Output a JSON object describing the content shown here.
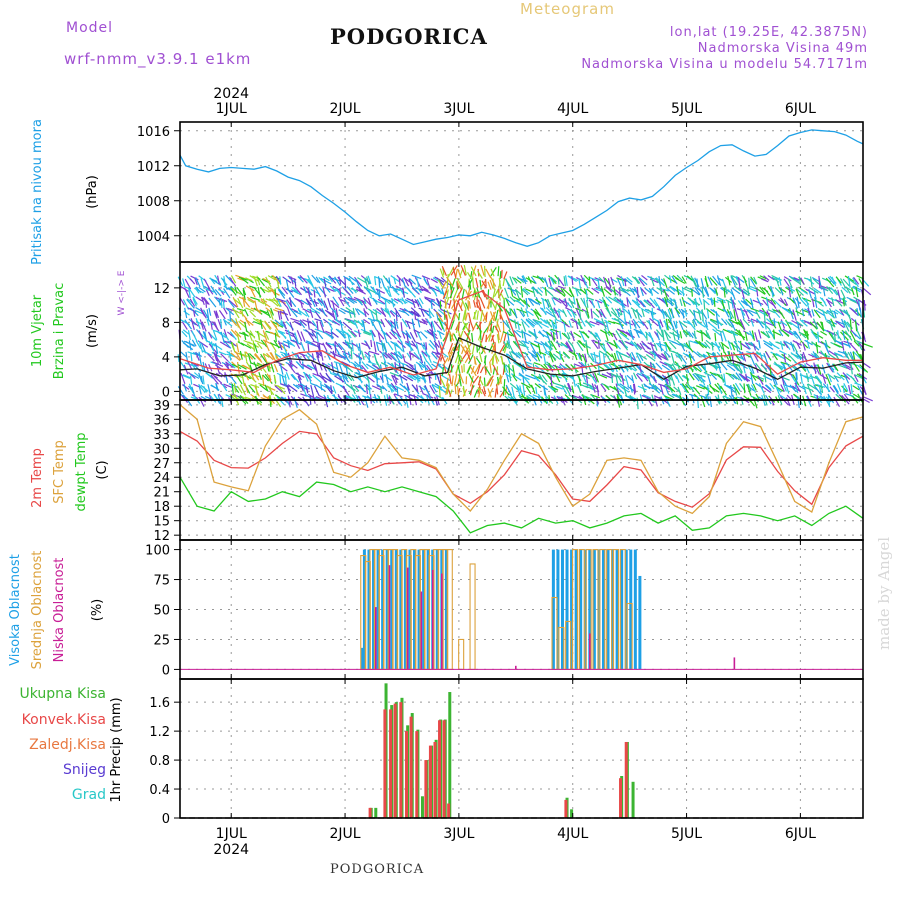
{
  "header": {
    "model_label": "Model",
    "model_name": "wrf-nmm_v3.9.1  e1km",
    "title": "PODGORICA",
    "meteogram": "Meteogram",
    "lonlat": "lon,lat (19.25E, 42.3875N)",
    "elevation": "Nadmorska Visina 49m",
    "model_elevation": "Nadmorska Visina u modelu 54.7171m",
    "footer": "PODGORICA",
    "watermark": "made by Angel"
  },
  "colors": {
    "pressure": "#1ea0e6",
    "temp2m": "#e84848",
    "sfctemp": "#dca23c",
    "dewpt": "#22c81e",
    "high_cloud": "#1ea0e6",
    "mid_cloud": "#dca23c",
    "low_cloud": "#c81e96",
    "total_precip": "#3cb432",
    "conv_precip": "#e84848",
    "snow": "#5a3cd2",
    "graupel": "#28c8c8"
  },
  "chart_data": [
    {
      "type": "line",
      "panel": "pressure",
      "ylabel_lines": [
        "Pritisak na nivou mora",
        "(hPa)"
      ],
      "x_labels": [
        "1JUL",
        "2JUL",
        "3JUL",
        "4JUL",
        "5JUL",
        "6JUL"
      ],
      "x_year": "2024",
      "ylim": [
        1001,
        1017
      ],
      "yticks": [
        1004,
        1008,
        1012,
        1016
      ],
      "xlim_days": [
        0.55,
        6.55
      ],
      "series": [
        {
          "key": "slp",
          "x": [
            0.55,
            0.6,
            0.7,
            0.8,
            0.9,
            1.0,
            1.1,
            1.2,
            1.3,
            1.4,
            1.5,
            1.6,
            1.7,
            1.8,
            1.9,
            2.0,
            2.1,
            2.2,
            2.3,
            2.4,
            2.5,
            2.6,
            2.7,
            2.8,
            2.9,
            3.0,
            3.1,
            3.2,
            3.3,
            3.4,
            3.5,
            3.6,
            3.7,
            3.8,
            3.9,
            4.0,
            4.1,
            4.2,
            4.3,
            4.4,
            4.5,
            4.6,
            4.7,
            4.8,
            4.9,
            5.0,
            5.1,
            5.2,
            5.3,
            5.4,
            5.5,
            5.6,
            5.7,
            5.8,
            5.9,
            6.0,
            6.1,
            6.2,
            6.3,
            6.4,
            6.5,
            6.55
          ],
          "values": [
            1013.2,
            1012.0,
            1011.6,
            1011.3,
            1011.7,
            1011.8,
            1011.7,
            1011.6,
            1011.9,
            1011.4,
            1010.7,
            1010.3,
            1009.6,
            1008.6,
            1007.7,
            1006.7,
            1005.6,
            1004.6,
            1004.0,
            1004.2,
            1003.6,
            1003.0,
            1003.3,
            1003.6,
            1003.8,
            1004.1,
            1004.0,
            1004.4,
            1004.1,
            1003.7,
            1003.2,
            1002.8,
            1003.2,
            1004.0,
            1004.3,
            1004.6,
            1005.3,
            1006.1,
            1006.9,
            1007.9,
            1008.3,
            1008.1,
            1008.5,
            1009.6,
            1010.9,
            1011.8,
            1012.6,
            1013.6,
            1014.3,
            1014.4,
            1013.7,
            1013.1,
            1013.3,
            1014.3,
            1015.4,
            1015.8,
            1016.1,
            1016.0,
            1015.9,
            1015.5,
            1014.8,
            1014.5
          ]
        }
      ]
    },
    {
      "type": "line",
      "panel": "wind",
      "ylabel_lines": [
        "10m Vjetar",
        "Brzina i Pravac",
        "(m/s)"
      ],
      "compass": "W <-|-> E",
      "ylim": [
        -1,
        15
      ],
      "yticks": [
        0,
        4,
        8,
        12
      ],
      "series": [
        {
          "key": "wind_speed",
          "x": [
            0.55,
            0.7,
            0.9,
            1.1,
            1.3,
            1.5,
            1.7,
            1.9,
            2.1,
            2.3,
            2.5,
            2.7,
            2.9,
            3.0,
            3.2,
            3.4,
            3.6,
            3.8,
            4.0,
            4.2,
            4.4,
            4.6,
            4.8,
            5.0,
            5.2,
            5.4,
            5.6,
            5.8,
            6.0,
            6.2,
            6.4,
            6.55
          ],
          "values": [
            2.5,
            2.6,
            1.8,
            1.9,
            3.1,
            3.8,
            3.6,
            2.4,
            1.6,
            2.3,
            2.8,
            1.8,
            2.2,
            6.2,
            5.1,
            4.2,
            2.6,
            2.0,
            1.8,
            2.3,
            2.7,
            3.1,
            1.4,
            2.9,
            3.2,
            3.6,
            2.7,
            1.4,
            2.8,
            2.7,
            3.3,
            3.4
          ]
        },
        {
          "key": "wind_gust",
          "x": [
            0.55,
            0.8,
            1.0,
            1.2,
            1.4,
            1.6,
            1.8,
            2.0,
            2.2,
            2.4,
            2.6,
            2.8,
            3.0,
            3.2,
            3.4,
            3.6,
            3.8,
            4.0,
            4.2,
            4.4,
            4.6,
            4.8,
            5.0,
            5.2,
            5.4,
            5.6,
            5.8,
            6.0,
            6.2,
            6.4,
            6.55
          ],
          "values": [
            3.8,
            2.7,
            2.5,
            2.2,
            3.6,
            4.5,
            4.7,
            3.1,
            2.2,
            2.8,
            1.9,
            2.6,
            10.6,
            11.6,
            9.6,
            2.8,
            2.5,
            2.6,
            3.0,
            3.6,
            3.1,
            2.2,
            2.6,
            4.0,
            4.2,
            4.4,
            2.0,
            3.4,
            3.9,
            3.6,
            3.6
          ]
        }
      ]
    },
    {
      "type": "line",
      "panel": "temperature",
      "ylabel_lines": [
        "2m Temp",
        "SFC Temp",
        "dewpt Temp",
        "(C)"
      ],
      "ylim": [
        11,
        40
      ],
      "yticks": [
        12,
        15,
        18,
        21,
        24,
        27,
        30,
        33,
        36,
        39
      ],
      "series": [
        {
          "key": "temp2m",
          "x": [
            0.55,
            0.7,
            0.85,
            1.0,
            1.15,
            1.3,
            1.45,
            1.6,
            1.75,
            1.9,
            2.05,
            2.2,
            2.35,
            2.5,
            2.65,
            2.8,
            2.95,
            3.1,
            3.25,
            3.4,
            3.55,
            3.7,
            3.85,
            4.0,
            4.15,
            4.3,
            4.45,
            4.6,
            4.75,
            4.9,
            5.05,
            5.2,
            5.35,
            5.5,
            5.65,
            5.8,
            5.95,
            6.1,
            6.25,
            6.4,
            6.55
          ],
          "values": [
            33.5,
            31.5,
            27.5,
            26,
            25.9,
            28,
            31,
            33.5,
            33,
            28,
            26.4,
            25.4,
            26.8,
            27,
            27.2,
            25.7,
            20.5,
            18.6,
            21,
            24.5,
            29.5,
            28.5,
            24.5,
            19.5,
            19,
            22.4,
            26.2,
            25.5,
            20.8,
            19,
            17.8,
            20.6,
            27.6,
            30.3,
            30.2,
            25.2,
            21.2,
            18.4,
            26,
            30.5,
            32.5
          ]
        },
        {
          "key": "sfctemp",
          "x": [
            0.55,
            0.7,
            0.85,
            1.0,
            1.15,
            1.3,
            1.45,
            1.6,
            1.75,
            1.9,
            2.05,
            2.2,
            2.35,
            2.5,
            2.65,
            2.8,
            2.95,
            3.1,
            3.25,
            3.4,
            3.55,
            3.7,
            3.85,
            4.0,
            4.15,
            4.3,
            4.45,
            4.6,
            4.75,
            4.9,
            5.05,
            5.2,
            5.35,
            5.5,
            5.65,
            5.8,
            5.95,
            6.1,
            6.25,
            6.4,
            6.55
          ],
          "values": [
            39,
            36,
            23,
            22,
            21.2,
            30.5,
            36,
            38,
            35,
            25,
            24,
            27,
            32.5,
            28,
            27.5,
            26,
            20.5,
            17,
            21.5,
            27.5,
            33,
            31,
            24,
            18,
            20.5,
            27.5,
            28,
            27.5,
            21,
            18,
            16.5,
            20,
            31,
            35.5,
            34.5,
            27,
            19,
            16.8,
            27,
            35.5,
            36.5
          ]
        },
        {
          "key": "dewpt",
          "x": [
            0.55,
            0.7,
            0.85,
            1.0,
            1.15,
            1.3,
            1.45,
            1.6,
            1.75,
            1.9,
            2.05,
            2.2,
            2.35,
            2.5,
            2.65,
            2.8,
            2.95,
            3.1,
            3.25,
            3.4,
            3.55,
            3.7,
            3.85,
            4.0,
            4.15,
            4.3,
            4.45,
            4.6,
            4.75,
            4.9,
            5.05,
            5.2,
            5.35,
            5.5,
            5.65,
            5.8,
            5.95,
            6.1,
            6.25,
            6.4,
            6.55
          ],
          "values": [
            24,
            18,
            17,
            21,
            19,
            19.5,
            21,
            20,
            23,
            22.5,
            21,
            22,
            21,
            22,
            21,
            20,
            17,
            12.5,
            14,
            14.5,
            13.5,
            15.5,
            14.5,
            15,
            13.5,
            14.5,
            16,
            16.5,
            14.5,
            16,
            13,
            13.5,
            16,
            16.5,
            16,
            15,
            16,
            14,
            16.5,
            18,
            15.5
          ]
        }
      ]
    },
    {
      "type": "bar",
      "panel": "cloud",
      "ylabel_lines": [
        "Visoka Oblacnost",
        "Srednja Oblacnost",
        "Niska Oblacnost",
        "(%)"
      ],
      "ylim": [
        -8,
        108
      ],
      "yticks": [
        0,
        25,
        50,
        75,
        100
      ],
      "series": [
        {
          "key": "high",
          "x": [
            2.15,
            2.17,
            2.21,
            2.25,
            2.29,
            2.33,
            2.37,
            2.41,
            2.45,
            2.49,
            2.53,
            2.57,
            2.61,
            2.65,
            2.69,
            2.73,
            2.77,
            2.81,
            2.85,
            2.89,
            3.83,
            3.87,
            3.91,
            3.95,
            3.99,
            4.03,
            4.07,
            4.11,
            4.15,
            4.19,
            4.23,
            4.27,
            4.31,
            4.35,
            4.39,
            4.43,
            4.47,
            4.51,
            4.55,
            4.59
          ],
          "values": [
            18,
            100,
            100,
            100,
            100,
            100,
            100,
            100,
            100,
            100,
            100,
            100,
            100,
            100,
            100,
            100,
            100,
            100,
            100,
            100,
            100,
            100,
            100,
            100,
            100,
            100,
            100,
            100,
            100,
            100,
            100,
            100,
            100,
            100,
            100,
            100,
            100,
            100,
            100,
            78
          ]
        },
        {
          "key": "mid",
          "x": [
            2.16,
            2.2,
            2.24,
            2.28,
            2.32,
            2.36,
            2.4,
            2.44,
            2.48,
            2.52,
            2.56,
            2.6,
            2.64,
            2.68,
            2.72,
            2.76,
            2.8,
            2.84,
            2.88,
            2.92,
            3.02,
            3.12,
            3.84,
            3.9,
            3.96,
            4.02,
            4.08,
            4.14,
            4.2,
            4.26,
            4.32,
            4.38,
            4.44,
            4.5
          ],
          "values": [
            95,
            90,
            100,
            100,
            95,
            100,
            100,
            100,
            95,
            100,
            95,
            100,
            95,
            100,
            100,
            95,
            100,
            100,
            100,
            100,
            25,
            88,
            60,
            35,
            40,
            100,
            100,
            100,
            100,
            100,
            100,
            100,
            100,
            55
          ]
        },
        {
          "key": "low",
          "x": [
            2.27,
            2.39,
            2.55,
            2.67,
            2.77,
            2.85,
            3.5,
            4.15,
            5.42
          ],
          "values": [
            52,
            87,
            85,
            65,
            83,
            80,
            3,
            30,
            10
          ]
        }
      ]
    },
    {
      "type": "bar",
      "panel": "precip",
      "ylabel_lines": [
        "Ukupna Kisa",
        "Konvek.Kisa",
        "Zaledj.Kisa",
        "Snijeg",
        "Grad",
        "1hr Precip (mm)"
      ],
      "ylim": [
        0,
        1.92
      ],
      "yticks": [
        0,
        0.4,
        0.8,
        1.2,
        1.6
      ],
      "series": [
        {
          "key": "total",
          "x": [
            2.23,
            2.27,
            2.36,
            2.41,
            2.45,
            2.5,
            2.55,
            2.59,
            2.64,
            2.68,
            2.72,
            2.76,
            2.8,
            2.84,
            2.88,
            2.92,
            3.95,
            3.99,
            4.43,
            4.48,
            4.53
          ],
          "values": [
            0.14,
            0.14,
            1.86,
            1.56,
            1.6,
            1.66,
            1.28,
            1.45,
            1.22,
            0.3,
            0.8,
            1.0,
            1.08,
            1.36,
            1.36,
            1.74,
            0.28,
            0.12,
            0.58,
            1.05,
            0.5
          ]
        },
        {
          "key": "convective",
          "x": [
            2.22,
            2.35,
            2.4,
            2.44,
            2.49,
            2.54,
            2.58,
            2.63,
            2.71,
            2.75,
            2.79,
            2.83,
            2.87,
            2.91,
            3.94,
            4.42,
            4.47
          ],
          "values": [
            0.14,
            1.5,
            1.5,
            1.58,
            1.6,
            1.2,
            1.4,
            1.2,
            0.8,
            1.0,
            1.05,
            1.35,
            1.35,
            0.2,
            0.25,
            0.55,
            1.05
          ]
        }
      ]
    }
  ]
}
